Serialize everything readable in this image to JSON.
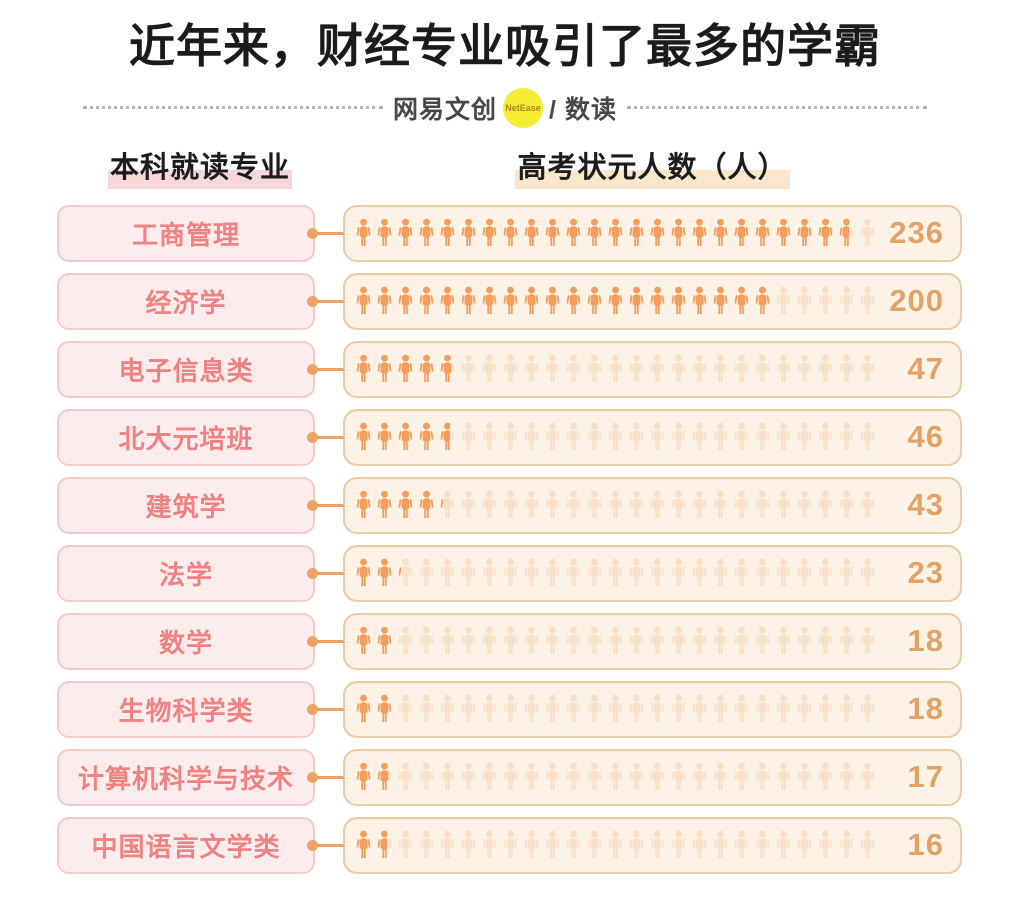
{
  "title": "近年来，财经专业吸引了最多的学霸",
  "brand": {
    "left_text": "网易文创",
    "badge": "NetEase",
    "right_text": "/ 数读"
  },
  "column_headers": {
    "left": "本科就读专业",
    "right": "高考状元人数（人）"
  },
  "chart_data": {
    "type": "bar",
    "style": "pictogram",
    "title": "近年来，财经专业吸引了最多的学霸",
    "ylabel": "本科就读专业",
    "xlabel": "高考状元人数（人）",
    "categories": [
      "工商管理",
      "经济学",
      "电子信息类",
      "北大元培班",
      "建筑学",
      "法学",
      "数学",
      "生物科学类",
      "计算机科学与技术",
      "中国语言文学类"
    ],
    "values": [
      236,
      200,
      47,
      46,
      43,
      23,
      18,
      18,
      17,
      16
    ],
    "persons_per_icon": 10,
    "icons_per_row": 25,
    "xlim": [
      0,
      250
    ],
    "grid": false,
    "legend": false
  },
  "colors": {
    "icon_filled": "#f49d5c",
    "icon_faded": "#f8e0c8",
    "bar_bg": "#fcf2e6",
    "bar_border": "#edcba4",
    "label_bg": "#fcedec",
    "label_border": "#f5cbc9",
    "label_text": "#ef8282",
    "value_text": "#e2a368",
    "connector": "#eda463",
    "highlight_pink": "#f8d7db",
    "highlight_cream": "#fae6cb",
    "badge_yellow": "#f6ec33",
    "title_text": "#1b1b1b"
  }
}
